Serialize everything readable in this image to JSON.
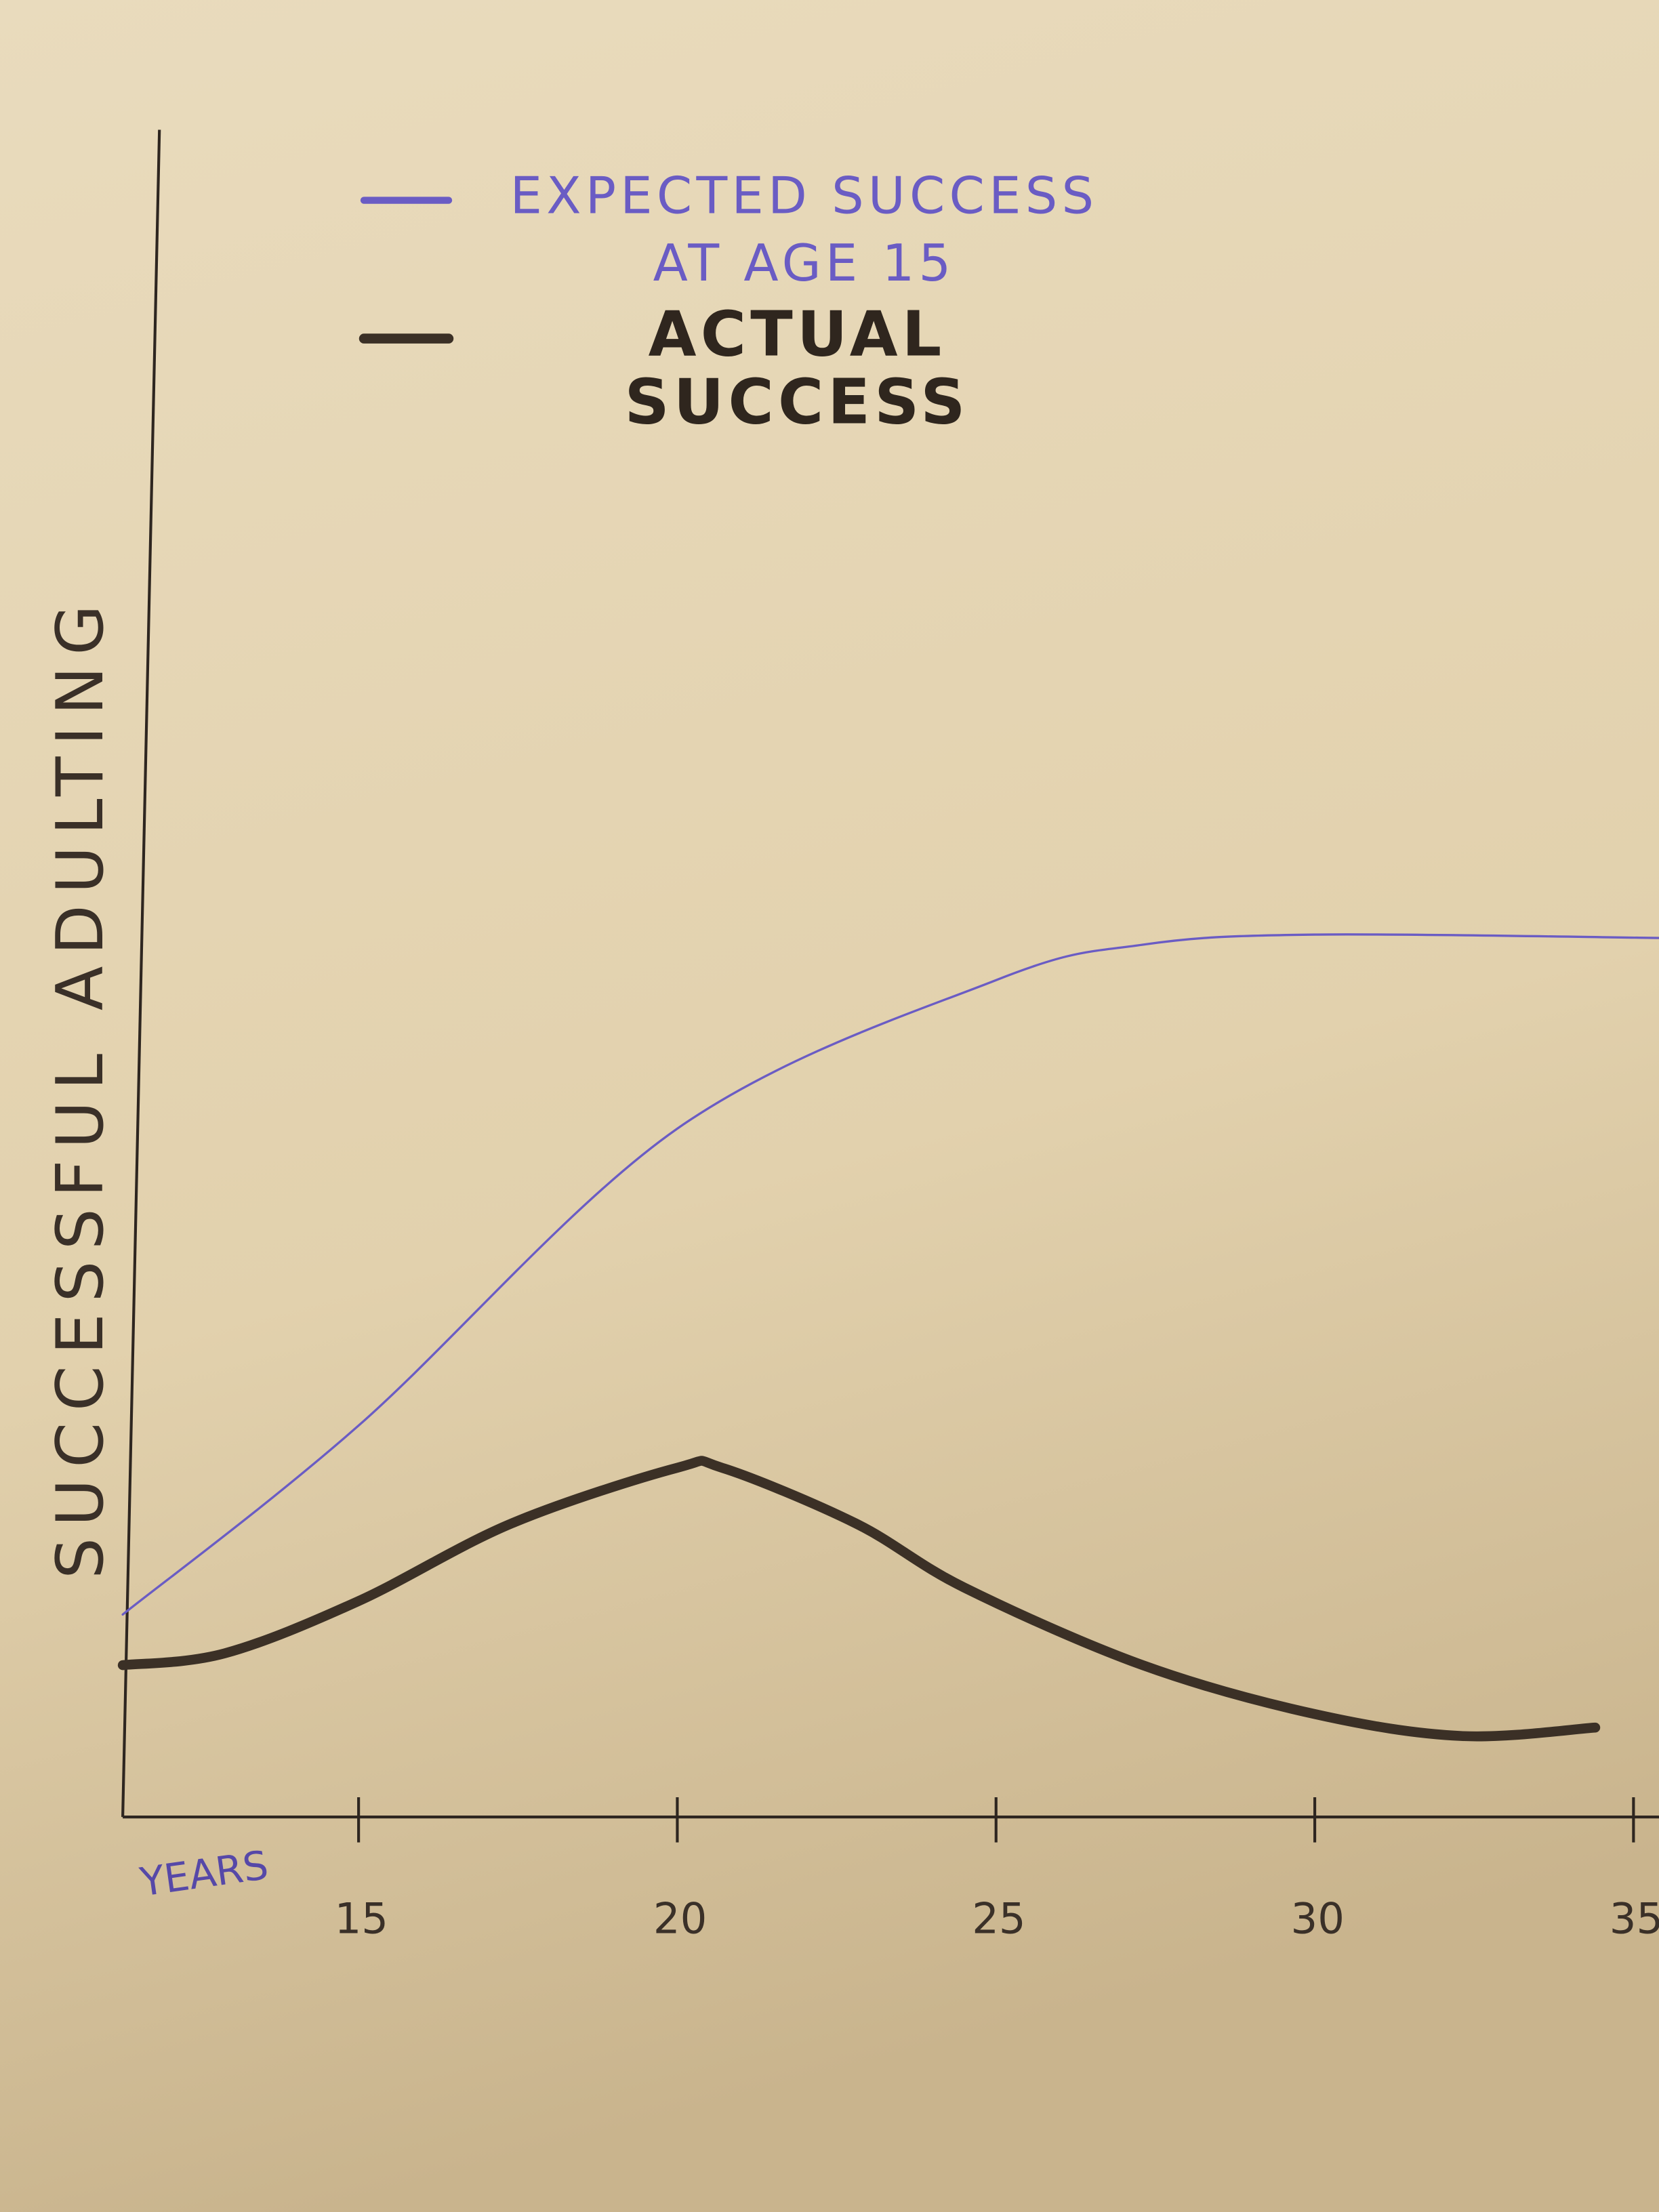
{
  "chart_data": {
    "type": "line",
    "xlabel": "YEARS",
    "ylabel": "SUCCESSFUL ADULTING",
    "xlim": [
      11.3,
      35.4
    ],
    "xticks": [
      15,
      20,
      25,
      30,
      35
    ],
    "ylim": [
      0,
      100
    ],
    "series": [
      {
        "name": "EXPECTED SUCCESS AT AGE 15",
        "color": "#6a5cc4",
        "x": [
          11.3,
          15,
          20,
          25,
          27.3,
          30,
          35.4
        ],
        "values": [
          12.0,
          23.2,
          40.8,
          49.6,
          51.7,
          52.3,
          52.1
        ]
      },
      {
        "name": "ACTUAL SUCCESS",
        "color": "#3b3026",
        "x": [
          11.3,
          12.9,
          15,
          17.4,
          20,
          20.7,
          22.8,
          24.5,
          27.3,
          30,
          32.3,
          34.4
        ],
        "values": [
          9.0,
          9.7,
          12.8,
          17.4,
          20.7,
          20.7,
          17.4,
          13.6,
          9.0,
          6.1,
          4.8,
          5.3
        ]
      }
    ],
    "legend": "top-left"
  }
}
